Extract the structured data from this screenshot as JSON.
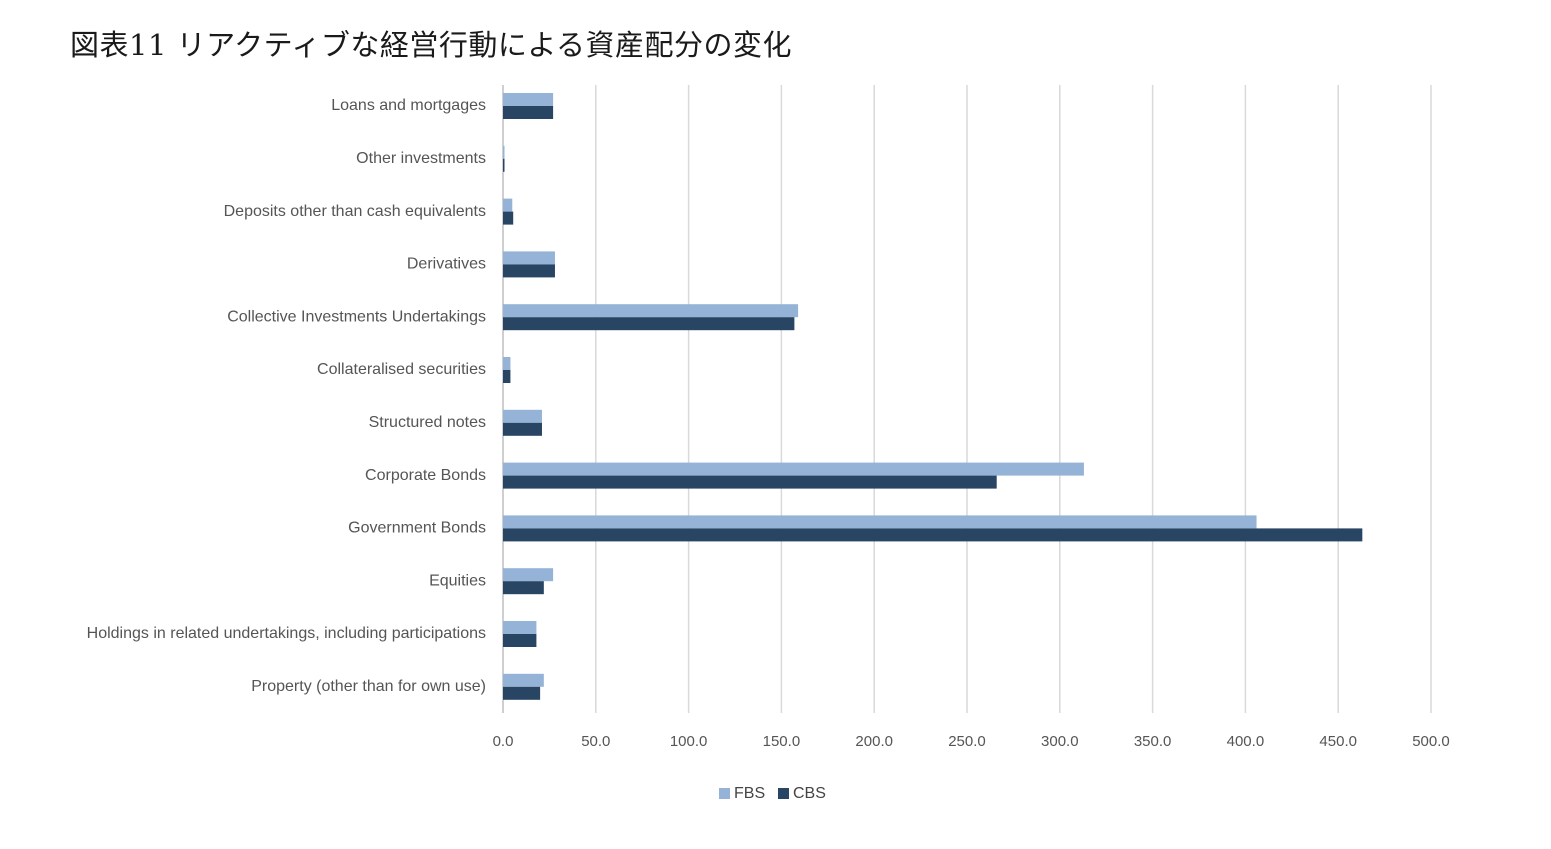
{
  "title": "図表11 リアクティブな経営行動による資産配分の変化",
  "chart_data": {
    "type": "bar",
    "orientation": "horizontal",
    "title": "図表11 リアクティブな経営行動による資産配分の変化",
    "xlabel": "",
    "ylabel": "",
    "xlim": [
      0,
      500
    ],
    "x_ticks": [
      "0.0",
      "50.0",
      "100.0",
      "150.0",
      "200.0",
      "250.0",
      "300.0",
      "350.0",
      "400.0",
      "450.0",
      "500.0"
    ],
    "x_tick_values": [
      0,
      50,
      100,
      150,
      200,
      250,
      300,
      350,
      400,
      450,
      500
    ],
    "grid": "vertical",
    "legend_position": "bottom",
    "categories": [
      "Loans and mortgages",
      "Other investments",
      "Deposits other than cash equivalents",
      "Derivatives",
      "Collective Investments Undertakings",
      "Collateralised securities",
      "Structured notes",
      "Corporate Bonds",
      "Government Bonds",
      "Equities",
      "Holdings in related undertakings, including participations",
      "Property (other than for own use)"
    ],
    "series": [
      {
        "name": "FBS",
        "color": "#94b3d7",
        "values": [
          27,
          0.3,
          5,
          28,
          159,
          4,
          21,
          313,
          406,
          27,
          18,
          22
        ]
      },
      {
        "name": "CBS",
        "color": "#284663",
        "values": [
          27,
          0.3,
          5.5,
          28,
          157,
          4,
          21,
          266,
          463,
          22,
          18,
          20
        ]
      }
    ]
  }
}
